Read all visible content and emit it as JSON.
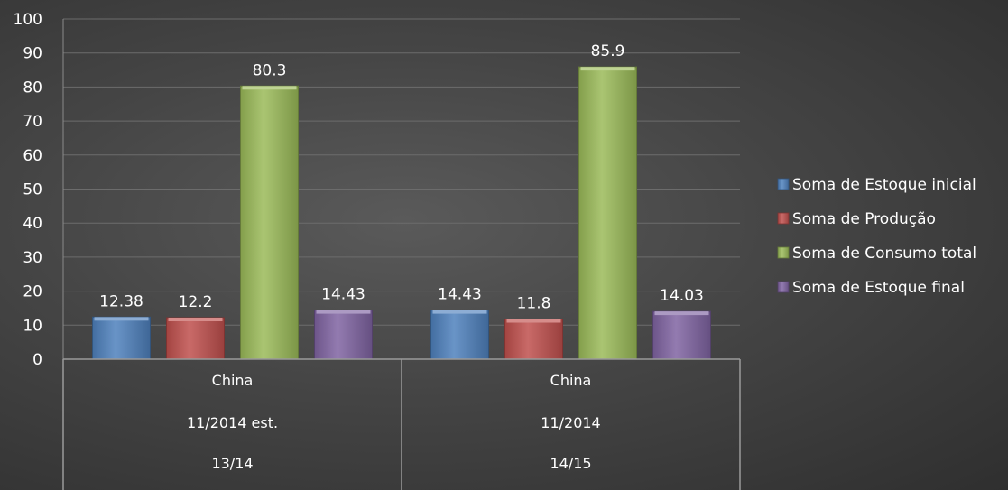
{
  "chart_data": {
    "type": "bar",
    "ylim": [
      0,
      100
    ],
    "yticks": [
      0,
      10,
      20,
      30,
      40,
      50,
      60,
      70,
      80,
      90,
      100
    ],
    "grid": true,
    "legend_position": "right",
    "groups": [
      {
        "levels": [
          "China",
          "11/2014 est.",
          "13/14"
        ]
      },
      {
        "levels": [
          "China",
          "11/2014",
          "14/15"
        ]
      }
    ],
    "series": [
      {
        "name": "Soma de Estoque inicial",
        "color": "#4f81bd",
        "values": [
          12.38,
          14.43
        ],
        "labels": [
          "12.38",
          "14.43"
        ]
      },
      {
        "name": "Soma de Produção",
        "color": "#c0504d",
        "values": [
          12.2,
          11.8
        ],
        "labels": [
          "12.2",
          "11.8"
        ]
      },
      {
        "name": "Soma de Consumo total",
        "color": "#9bbb59",
        "values": [
          80.3,
          85.9
        ],
        "labels": [
          "80.3",
          "85.9"
        ]
      },
      {
        "name": "Soma de Estoque final",
        "color": "#8064a2",
        "values": [
          14.43,
          14.03
        ],
        "labels": [
          "14.43",
          "14.03"
        ]
      }
    ]
  }
}
